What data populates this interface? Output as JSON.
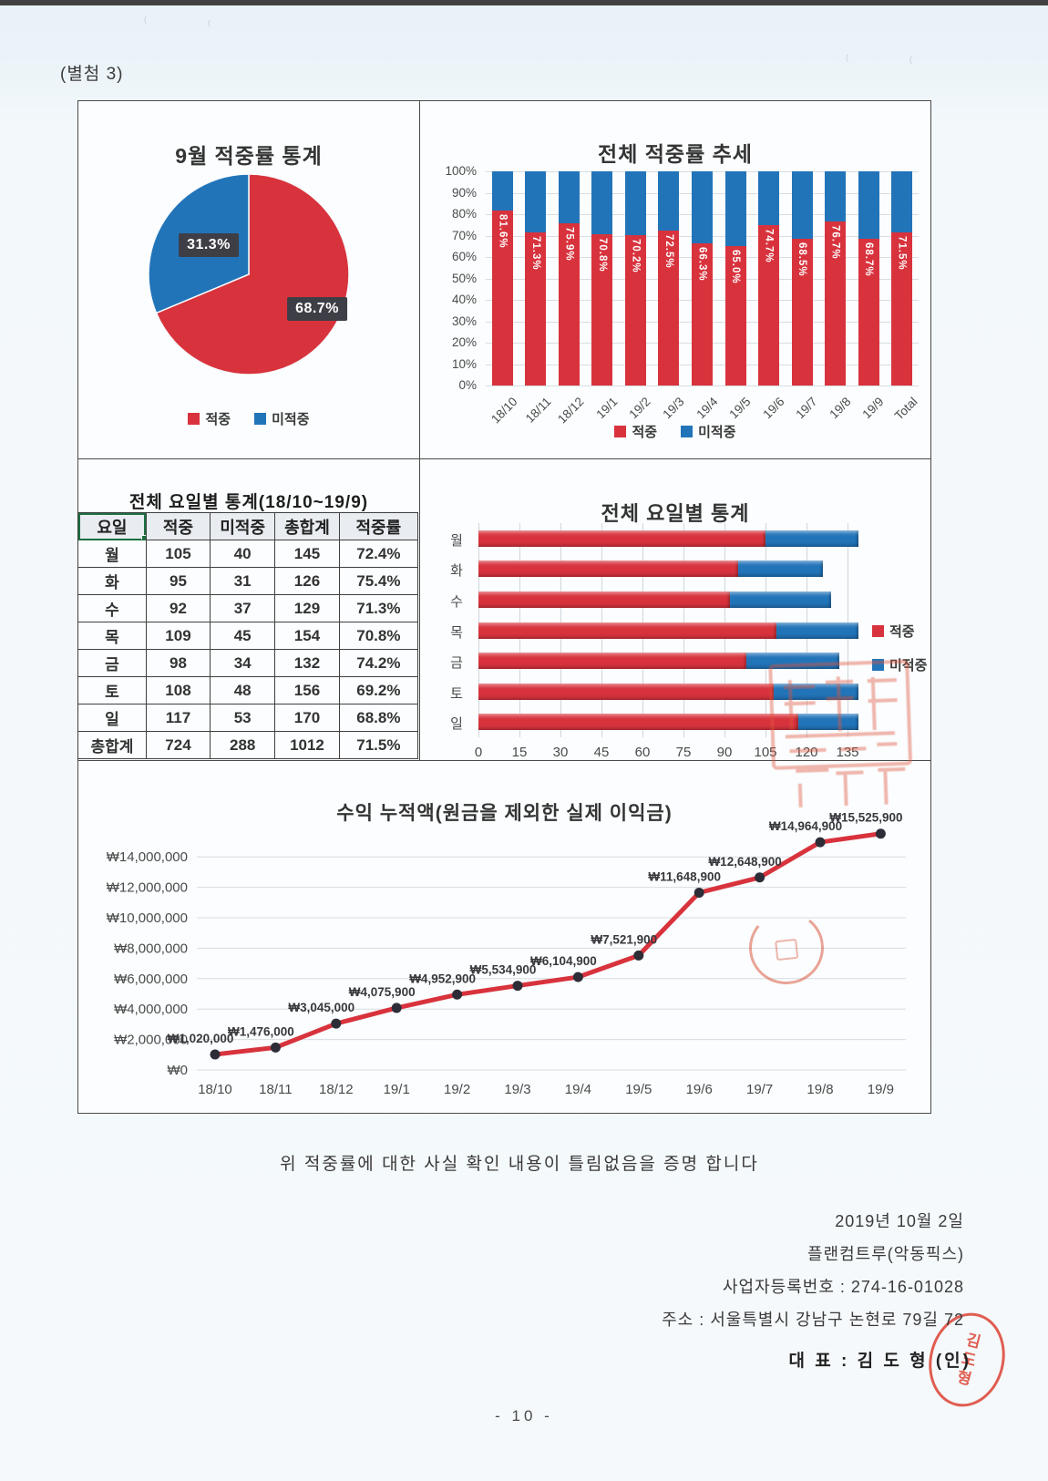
{
  "page": {
    "attachment_label": "(별첨 3)",
    "certification_text": "위 적중률에 대한 사실 확인 내용이 틀림없음을 증명 합니다",
    "date_line": "2019년 10월 2일",
    "company_line": "플랜컴트루(악동픽스)",
    "business_number_line": "사업자등록번호 : 274-16-01028",
    "address_line": "주소 : 서울특별시 강남구 논현로 79길 72",
    "representative_line": "대 표 : 김 도 형  (인)",
    "stamp_text": "김도형",
    "page_number": "- 10 -"
  },
  "colors": {
    "hit_red": "#d8333d",
    "miss_blue": "#2274b9",
    "label_box": "#3e3e46",
    "table_red": "#d82a2a",
    "table_blue": "#2c72c8",
    "stamp_red": "#dd4234",
    "grid": "#d7dde2"
  },
  "chart_data": [
    {
      "id": "september_pie",
      "type": "pie",
      "title": "9월 적중률 통계",
      "labels": [
        "적중",
        "미적중"
      ],
      "values": [
        68.7,
        31.3
      ],
      "value_labels": [
        "68.7%",
        "31.3%"
      ],
      "colors": [
        "#d8333d",
        "#2274b9"
      ],
      "legend": [
        "적중",
        "미적중"
      ],
      "legend_position": "bottom"
    },
    {
      "id": "overall_trend",
      "type": "bar",
      "stacked": true,
      "percent_axis": true,
      "title": "전체 적중률 추세",
      "categories": [
        "18/10",
        "18/11",
        "18/12",
        "19/1",
        "19/2",
        "19/3",
        "19/4",
        "19/5",
        "19/6",
        "19/7",
        "19/8",
        "19/9",
        "Total"
      ],
      "series": [
        {
          "name": "적중",
          "values": [
            81.6,
            71.3,
            75.9,
            70.8,
            70.2,
            72.5,
            66.3,
            65.0,
            74.7,
            68.5,
            76.7,
            68.7,
            71.5
          ]
        },
        {
          "name": "미적중",
          "values": [
            18.4,
            28.7,
            24.1,
            29.2,
            29.8,
            27.5,
            33.7,
            35.0,
            25.3,
            31.5,
            23.3,
            31.3,
            28.5
          ]
        }
      ],
      "bar_labels": [
        "81.6%",
        "71.3%",
        "75.9%",
        "70.8%",
        "70.2%",
        "72.5%",
        "66.3%",
        "65.0%",
        "74.7%",
        "68.5%",
        "76.7%",
        "68.7%",
        "71.5%"
      ],
      "y_ticks": [
        "100%",
        "90%",
        "80%",
        "70%",
        "60%",
        "50%",
        "40%",
        "30%",
        "20%",
        "10%",
        "0%"
      ],
      "ylim": [
        0,
        100
      ],
      "legend": [
        "적중",
        "미적중"
      ],
      "legend_position": "bottom"
    },
    {
      "id": "weekday_table",
      "type": "table",
      "title": "전체 요일별 통계(18/10~19/9)",
      "columns": [
        "요일",
        "적중",
        "미적중",
        "총합계",
        "적중률"
      ],
      "rows": [
        [
          "월",
          "105",
          "40",
          "145",
          "72.4%"
        ],
        [
          "화",
          "95",
          "31",
          "126",
          "75.4%"
        ],
        [
          "수",
          "92",
          "37",
          "129",
          "71.3%"
        ],
        [
          "목",
          "109",
          "45",
          "154",
          "70.8%"
        ],
        [
          "금",
          "98",
          "34",
          "132",
          "74.2%"
        ],
        [
          "토",
          "108",
          "48",
          "156",
          "69.2%"
        ],
        [
          "일",
          "117",
          "53",
          "170",
          "68.8%"
        ],
        [
          "총합계",
          "724",
          "288",
          "1012",
          "71.5%"
        ]
      ],
      "row_styles": [
        "normal",
        "red",
        "normal",
        "normal",
        "normal",
        "normal",
        "blue",
        "total"
      ]
    },
    {
      "id": "weekday_bar",
      "type": "bar",
      "orientation": "horizontal",
      "stacked": true,
      "title": "전체 요일별 통계",
      "categories": [
        "월",
        "화",
        "수",
        "목",
        "금",
        "토",
        "일"
      ],
      "series": [
        {
          "name": "적중",
          "values": [
            105,
            95,
            92,
            109,
            98,
            108,
            117
          ]
        },
        {
          "name": "미적중",
          "values": [
            40,
            31,
            37,
            45,
            34,
            48,
            53
          ]
        }
      ],
      "x_ticks": [
        0,
        15,
        30,
        45,
        60,
        75,
        90,
        105,
        120,
        135
      ],
      "x_clip_max": 139,
      "legend": [
        "적중",
        "미적중"
      ],
      "legend_position": "right"
    },
    {
      "id": "profit_line",
      "type": "line",
      "title": "수익 누적액(원금을 제외한 실제 이익금)",
      "x": [
        "18/10",
        "18/11",
        "18/12",
        "19/1",
        "19/2",
        "19/3",
        "19/4",
        "19/5",
        "19/6",
        "19/7",
        "19/8",
        "19/9"
      ],
      "values": [
        1020000,
        1476000,
        3045000,
        4075900,
        4952900,
        5534900,
        6104900,
        7521900,
        11648900,
        12648900,
        14964900,
        15525900
      ],
      "point_labels": [
        "₩1,020,000",
        "₩1,476,000",
        "₩3,045,000",
        "₩4,075,900",
        "₩4,952,900",
        "₩5,534,900",
        "₩6,104,900",
        "₩7,521,900",
        "₩11,648,900",
        "₩12,648,900",
        "₩14,964,900",
        "₩15,525,900"
      ],
      "y_ticks": [
        "₩0",
        "₩2,000,000",
        "₩4,000,000",
        "₩6,000,000",
        "₩8,000,000",
        "₩10,000,000",
        "₩12,000,000",
        "₩14,000,000"
      ],
      "y_tick_values": [
        0,
        2000000,
        4000000,
        6000000,
        8000000,
        10000000,
        12000000,
        14000000
      ],
      "line_color": "#d8333d",
      "marker_color": "#2d2d38"
    }
  ]
}
